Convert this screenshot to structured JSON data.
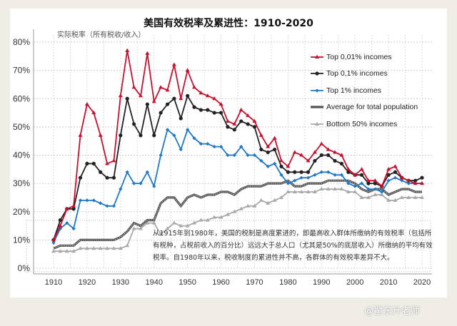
{
  "chart_data": {
    "type": "line",
    "title": "美国有效税率及累进性：1910-2020",
    "ylabel": "实际税率（所有税收/收入）",
    "xlabel": "",
    "xlim": [
      1910,
      2020
    ],
    "ylim": [
      0,
      80
    ],
    "xticks": [
      "1910",
      "1920",
      "1930",
      "1940",
      "1950",
      "1960",
      "1970",
      "1980",
      "1990",
      "2000",
      "2010",
      "2020"
    ],
    "yticks": [
      "0%",
      "10%",
      "20%",
      "30%",
      "40%",
      "50%",
      "60%",
      "70%",
      "80%"
    ],
    "grid": true,
    "legend_position": "top-right",
    "annotation": "从1915年到1980年，美国的税制是高度累进的，即最高收入群体所缴纳的有效税率（包括所有税种，占税前收入的百分比）远远大于总人口（尤其是50%的底层收入）所缴纳的平均有效税率。自1980年以来，税收制度的累进性并不高，各群体的有效税率差异不大。",
    "x": [
      1910,
      1912,
      1914,
      1916,
      1918,
      1920,
      1922,
      1924,
      1926,
      1928,
      1930,
      1932,
      1934,
      1936,
      1938,
      1940,
      1942,
      1944,
      1946,
      1948,
      1950,
      1952,
      1954,
      1956,
      1958,
      1960,
      1962,
      1964,
      1966,
      1968,
      1970,
      1972,
      1974,
      1976,
      1978,
      1980,
      1982,
      1984,
      1986,
      1988,
      1990,
      1992,
      1994,
      1996,
      1998,
      2000,
      2002,
      2004,
      2006,
      2008,
      2010,
      2012,
      2014,
      2016,
      2018,
      2020
    ],
    "series": [
      {
        "name": "Top 0,01% incomes",
        "color": "#c8102e",
        "marker": "triangle",
        "values": [
          10,
          15,
          21,
          22,
          47,
          58,
          55,
          47,
          37,
          38,
          61,
          77,
          64,
          61,
          76,
          59,
          64,
          63,
          72,
          60,
          70,
          64,
          62,
          61,
          60,
          58,
          52,
          51,
          56,
          54,
          52,
          47,
          43,
          46,
          38,
          36,
          41,
          40,
          38,
          41,
          44,
          42,
          41,
          40,
          35,
          33,
          35,
          31,
          31,
          29,
          35,
          36,
          32,
          31,
          30,
          30
        ]
      },
      {
        "name": "Top 0,1% incomes",
        "color": "#222222",
        "marker": "circle",
        "values": [
          10,
          17,
          21,
          21,
          32,
          37,
          37,
          34,
          32,
          32,
          47,
          60,
          51,
          47,
          58,
          47,
          55,
          58,
          60,
          53,
          61,
          57,
          56,
          56,
          55,
          55,
          50,
          49,
          52,
          51,
          50,
          42,
          41,
          42,
          36,
          34,
          34,
          34,
          34,
          38,
          40,
          40,
          38,
          37,
          34,
          33,
          33,
          30,
          30,
          29,
          33,
          34,
          32,
          31,
          31,
          32
        ]
      },
      {
        "name": "Top 1% incomes",
        "color": "#1f78c8",
        "marker": "diamond",
        "values": [
          9,
          14,
          16,
          14,
          24,
          24,
          24,
          23,
          22,
          22,
          28,
          34,
          30,
          30,
          34,
          29,
          40,
          49,
          47,
          42,
          49,
          46,
          44,
          44,
          43,
          43,
          40,
          40,
          43,
          40,
          40,
          38,
          36,
          37,
          33,
          30,
          31,
          32,
          32,
          33,
          34,
          34,
          33,
          33,
          30,
          29,
          30,
          28,
          28,
          27,
          31,
          32,
          31,
          30,
          30,
          30
        ]
      },
      {
        "name": "Average for total population",
        "color": "#555555",
        "marker": "none",
        "values": [
          7,
          8,
          8,
          8,
          10,
          10,
          10,
          10,
          10,
          10,
          11,
          13,
          16,
          15,
          17,
          17,
          23,
          25,
          25,
          22,
          25,
          26,
          25,
          26,
          26,
          27,
          27,
          26,
          28,
          29,
          29,
          29,
          30,
          30,
          30,
          31,
          29,
          29,
          30,
          30,
          30,
          31,
          31,
          31,
          31,
          30,
          28,
          27,
          28,
          28,
          26,
          27,
          28,
          28,
          27,
          27
        ]
      },
      {
        "name": "Bottom 50% incomes",
        "color": "#aaaaaa",
        "marker": "triangle",
        "values": [
          6,
          6,
          6,
          6,
          7,
          7,
          7,
          7,
          7,
          7,
          7,
          8,
          14,
          14,
          16,
          16,
          12,
          14,
          16,
          15,
          15,
          16,
          17,
          17,
          18,
          18,
          19,
          20,
          21,
          22,
          22,
          24,
          23,
          24,
          25,
          27,
          27,
          27,
          27,
          27,
          28,
          28,
          28,
          28,
          27,
          27,
          25,
          25,
          26,
          26,
          24,
          24,
          25,
          25,
          25,
          25
        ]
      }
    ]
  },
  "watermark": "@翟东升老师"
}
